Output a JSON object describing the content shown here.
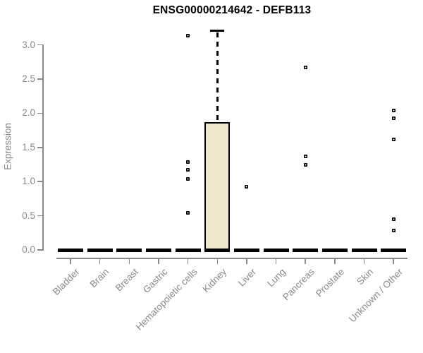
{
  "window": {
    "title": "ENSG00000214642 - DEFB113"
  },
  "colors": {
    "background": "#ffffff",
    "axis": "#8a8a8a",
    "box_fill": "#EEE8CD",
    "box_border": "#000000",
    "title_text": "#000000"
  },
  "chart_data": {
    "type": "boxplot",
    "title": "ENSG00000214642 - DEFB113",
    "xlabel": "",
    "ylabel": "Expression",
    "ylim": [
      0,
      3.25
    ],
    "yticks": [
      0,
      0.5,
      1,
      1.5,
      2,
      2.5,
      3
    ],
    "grid": false,
    "legend": false,
    "x_tick_rotation": 45,
    "categories": [
      "Bladder",
      "Brain",
      "Breast",
      "Gastric",
      "Hematopoietic cells",
      "Kidney",
      "Liver",
      "Lung",
      "Pancreas",
      "Prostate",
      "Skin",
      "Unknown / Other"
    ],
    "series": [
      {
        "category": "Bladder",
        "q1": 0,
        "median": 0,
        "q3": 0,
        "whisker_low": 0,
        "whisker_high": 0,
        "outliers": []
      },
      {
        "category": "Brain",
        "q1": 0,
        "median": 0,
        "q3": 0,
        "whisker_low": 0,
        "whisker_high": 0,
        "outliers": []
      },
      {
        "category": "Breast",
        "q1": 0,
        "median": 0,
        "q3": 0,
        "whisker_low": 0,
        "whisker_high": 0,
        "outliers": []
      },
      {
        "category": "Gastric",
        "q1": 0,
        "median": 0,
        "q3": 0,
        "whisker_low": 0,
        "whisker_high": 0,
        "outliers": []
      },
      {
        "category": "Hematopoietic cells",
        "q1": 0,
        "median": 0,
        "q3": 0,
        "whisker_low": 0,
        "whisker_high": 0,
        "outliers": [
          3.14,
          1.29,
          1.17,
          1.04,
          0.54
        ]
      },
      {
        "category": "Kidney",
        "q1": 0,
        "median": 0,
        "q3": 1.87,
        "whisker_low": 0,
        "whisker_high": 3.21,
        "outliers": []
      },
      {
        "category": "Liver",
        "q1": 0,
        "median": 0,
        "q3": 0,
        "whisker_low": 0,
        "whisker_high": 0,
        "outliers": [
          0.92
        ]
      },
      {
        "category": "Lung",
        "q1": 0,
        "median": 0,
        "q3": 0,
        "whisker_low": 0,
        "whisker_high": 0,
        "outliers": []
      },
      {
        "category": "Pancreas",
        "q1": 0,
        "median": 0,
        "q3": 0,
        "whisker_low": 0,
        "whisker_high": 0,
        "outliers": [
          2.67,
          1.37,
          1.24
        ]
      },
      {
        "category": "Prostate",
        "q1": 0,
        "median": 0,
        "q3": 0,
        "whisker_low": 0,
        "whisker_high": 0,
        "outliers": []
      },
      {
        "category": "Skin",
        "q1": 0,
        "median": 0,
        "q3": 0,
        "whisker_low": 0,
        "whisker_high": 0,
        "outliers": []
      },
      {
        "category": "Unknown / Other",
        "q1": 0,
        "median": 0,
        "q3": 0,
        "whisker_low": 0,
        "whisker_high": 0,
        "outliers": [
          2.04,
          1.93,
          1.62,
          0.45,
          0.28
        ]
      }
    ]
  }
}
